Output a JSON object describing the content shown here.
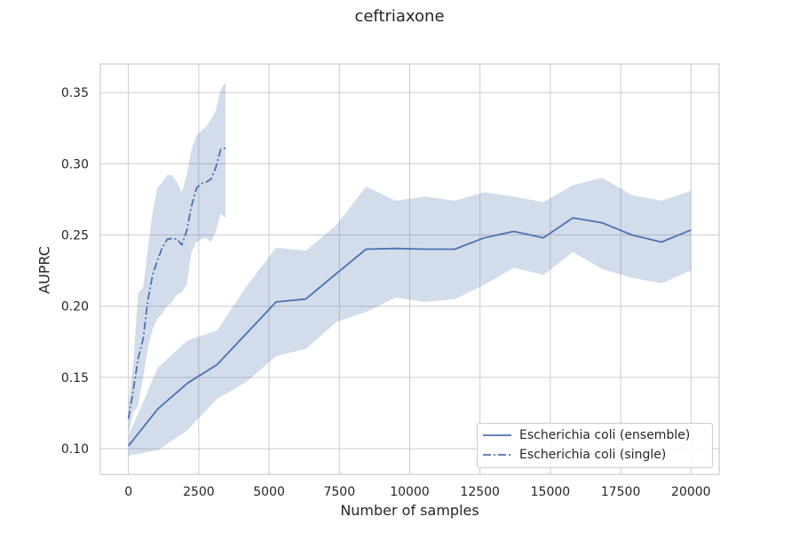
{
  "colors": {
    "line": "#4c72b0",
    "band": "#4c72b0",
    "grid": "#cccccc",
    "axis_text": "#262626"
  },
  "chart_data": {
    "type": "line",
    "title": "ceftriaxone",
    "xlabel": "Number of samples",
    "ylabel": "AUPRC",
    "xlim": [
      -1000,
      21000
    ],
    "ylim": [
      0.082,
      0.37
    ],
    "xticks": [
      0,
      2500,
      5000,
      7500,
      10000,
      12500,
      15000,
      17500,
      20000
    ],
    "yticks": [
      0.1,
      0.15,
      0.2,
      0.25,
      0.3,
      0.35
    ],
    "xtick_labels": [
      "0",
      "2500",
      "5000",
      "7500",
      "10000",
      "12500",
      "15000",
      "17500",
      "20000"
    ],
    "ytick_labels": [
      "0.10",
      "0.15",
      "0.20",
      "0.25",
      "0.30",
      "0.35"
    ],
    "grid": true,
    "legend_position": "lower-right",
    "series": [
      {
        "name": "Escherichia coli (ensemble)",
        "style": "solid",
        "x": [
          0,
          1050,
          2100,
          3150,
          4200,
          5250,
          6300,
          7400,
          8450,
          9500,
          10550,
          11600,
          12650,
          13700,
          14750,
          15800,
          16850,
          17900,
          18950,
          20000
        ],
        "y": [
          0.102,
          0.128,
          0.146,
          0.159,
          0.181,
          0.203,
          0.205,
          0.223,
          0.24,
          0.2405,
          0.24,
          0.24,
          0.248,
          0.2525,
          0.248,
          0.262,
          0.2585,
          0.25,
          0.245,
          0.2535
        ],
        "lower": [
          0.095,
          0.099,
          0.113,
          0.135,
          0.147,
          0.165,
          0.17,
          0.189,
          0.196,
          0.206,
          0.203,
          0.205,
          0.215,
          0.227,
          0.222,
          0.238,
          0.226,
          0.22,
          0.216,
          0.225
        ],
        "upper": [
          0.109,
          0.157,
          0.176,
          0.183,
          0.214,
          0.241,
          0.239,
          0.257,
          0.284,
          0.274,
          0.277,
          0.274,
          0.28,
          0.277,
          0.273,
          0.285,
          0.29,
          0.278,
          0.274,
          0.281
        ]
      },
      {
        "name": "Escherichia coli (single)",
        "style": "dashdot",
        "x": [
          0,
          170,
          340,
          520,
          690,
          860,
          1030,
          1200,
          1380,
          1550,
          1720,
          1900,
          2070,
          2240,
          2420,
          2590,
          2760,
          2930,
          3100,
          3280,
          3450
        ],
        "y": [
          0.121,
          0.141,
          0.163,
          0.177,
          0.204,
          0.222,
          0.232,
          0.241,
          0.247,
          0.2475,
          0.247,
          0.243,
          0.253,
          0.27,
          0.283,
          0.286,
          0.287,
          0.289,
          0.297,
          0.31,
          0.311
        ],
        "lower": [
          0.111,
          0.125,
          0.13,
          0.15,
          0.17,
          0.184,
          0.191,
          0.195,
          0.2,
          0.203,
          0.208,
          0.21,
          0.215,
          0.238,
          0.245,
          0.247,
          0.248,
          0.245,
          0.252,
          0.265,
          0.262
        ],
        "upper": [
          0.131,
          0.16,
          0.209,
          0.213,
          0.24,
          0.266,
          0.283,
          0.287,
          0.292,
          0.292,
          0.287,
          0.28,
          0.292,
          0.31,
          0.32,
          0.323,
          0.326,
          0.331,
          0.337,
          0.352,
          0.357
        ]
      }
    ]
  }
}
